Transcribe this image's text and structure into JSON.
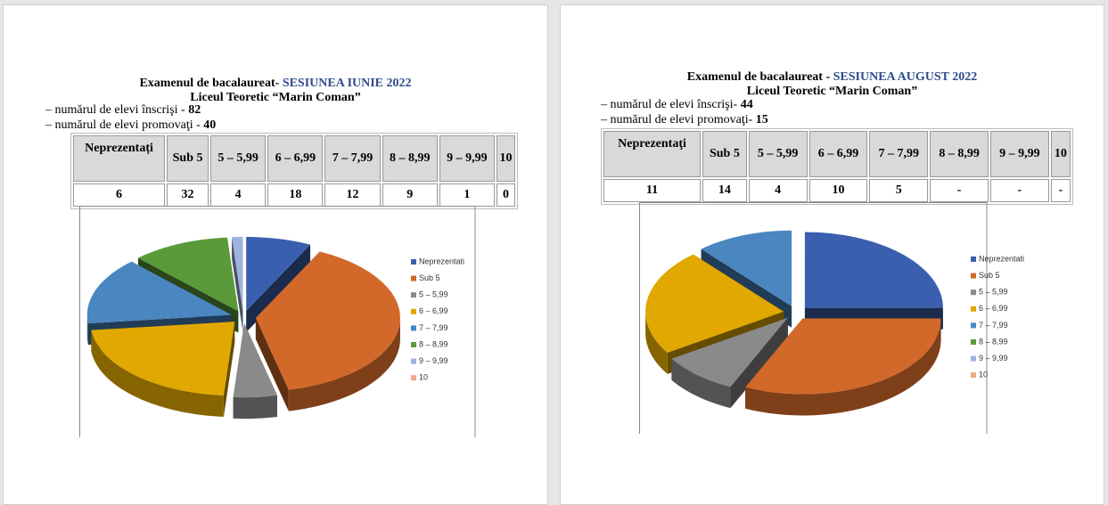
{
  "pages": [
    {
      "title": "Examenul de bacalaureat- ",
      "session": "SESIUNEA  IUNIE 2022",
      "school": "Liceul Teoretic “Marin Coman”",
      "lines": [
        {
          "text": "– numărul de elevi înscrişi - ",
          "value": "82"
        },
        {
          "text": "– numărul de elevi promovaţi - ",
          "value": "40"
        }
      ],
      "table": {
        "header": [
          "Neprezentați",
          "Sub 5",
          "5 – 5,99",
          "6 – 6,99",
          "7 – 7,99",
          "8 – 8,99",
          "9 – 9,99",
          "10"
        ],
        "row": [
          "6",
          "32",
          "4",
          "18",
          "12",
          "9",
          "1",
          "0"
        ]
      }
    },
    {
      "title": "Examenul de  bacalaureat - ",
      "session": "SESIUNEA AUGUST 2022",
      "school": "Liceul Teoretic “Marin Coman”",
      "lines": [
        {
          "text": "– numărul de elevi înscrişi- ",
          "value": "44"
        },
        {
          "text": "– numărul de elevi promovaţi- ",
          "value": "15"
        }
      ],
      "table": {
        "header": [
          "Neprezentaţi",
          "Sub 5",
          "5 – 5,99",
          "6 – 6,99",
          "7 – 7,99",
          "8 – 8,99",
          "9 – 9,99",
          "10"
        ],
        "row": [
          "11",
          "14",
          "4",
          "10",
          "5",
          "-",
          "-",
          "-"
        ]
      }
    }
  ],
  "chart_data": [
    {
      "type": "pie",
      "categories": [
        "Neprezentati",
        "Sub 5",
        "5 – 5,99",
        "6 – 6,99",
        "7 – 7,99",
        "8 – 8,99",
        "9 – 9,99",
        "10"
      ],
      "values": [
        6,
        32,
        4,
        18,
        12,
        9,
        1,
        0
      ],
      "colors": [
        "#3a5fae",
        "#d2692a",
        "#8a8a8a",
        "#e0a800",
        "#4a86c0",
        "#5b9a3a",
        "#9fb3e0",
        "#f0a888"
      ]
    },
    {
      "type": "pie",
      "categories": [
        "Neprezentati",
        "Sub 5",
        "5 – 5,99",
        "6 – 6,99",
        "7 – 7,99",
        "8 – 8,99",
        "9 – 9,99",
        "10"
      ],
      "values": [
        11,
        14,
        4,
        10,
        5,
        0,
        0,
        0
      ],
      "colors": [
        "#3a5fae",
        "#d2692a",
        "#8a8a8a",
        "#e0a800",
        "#4a86c0",
        "#5b9a3a",
        "#9fb3e0",
        "#f0a888"
      ]
    }
  ]
}
